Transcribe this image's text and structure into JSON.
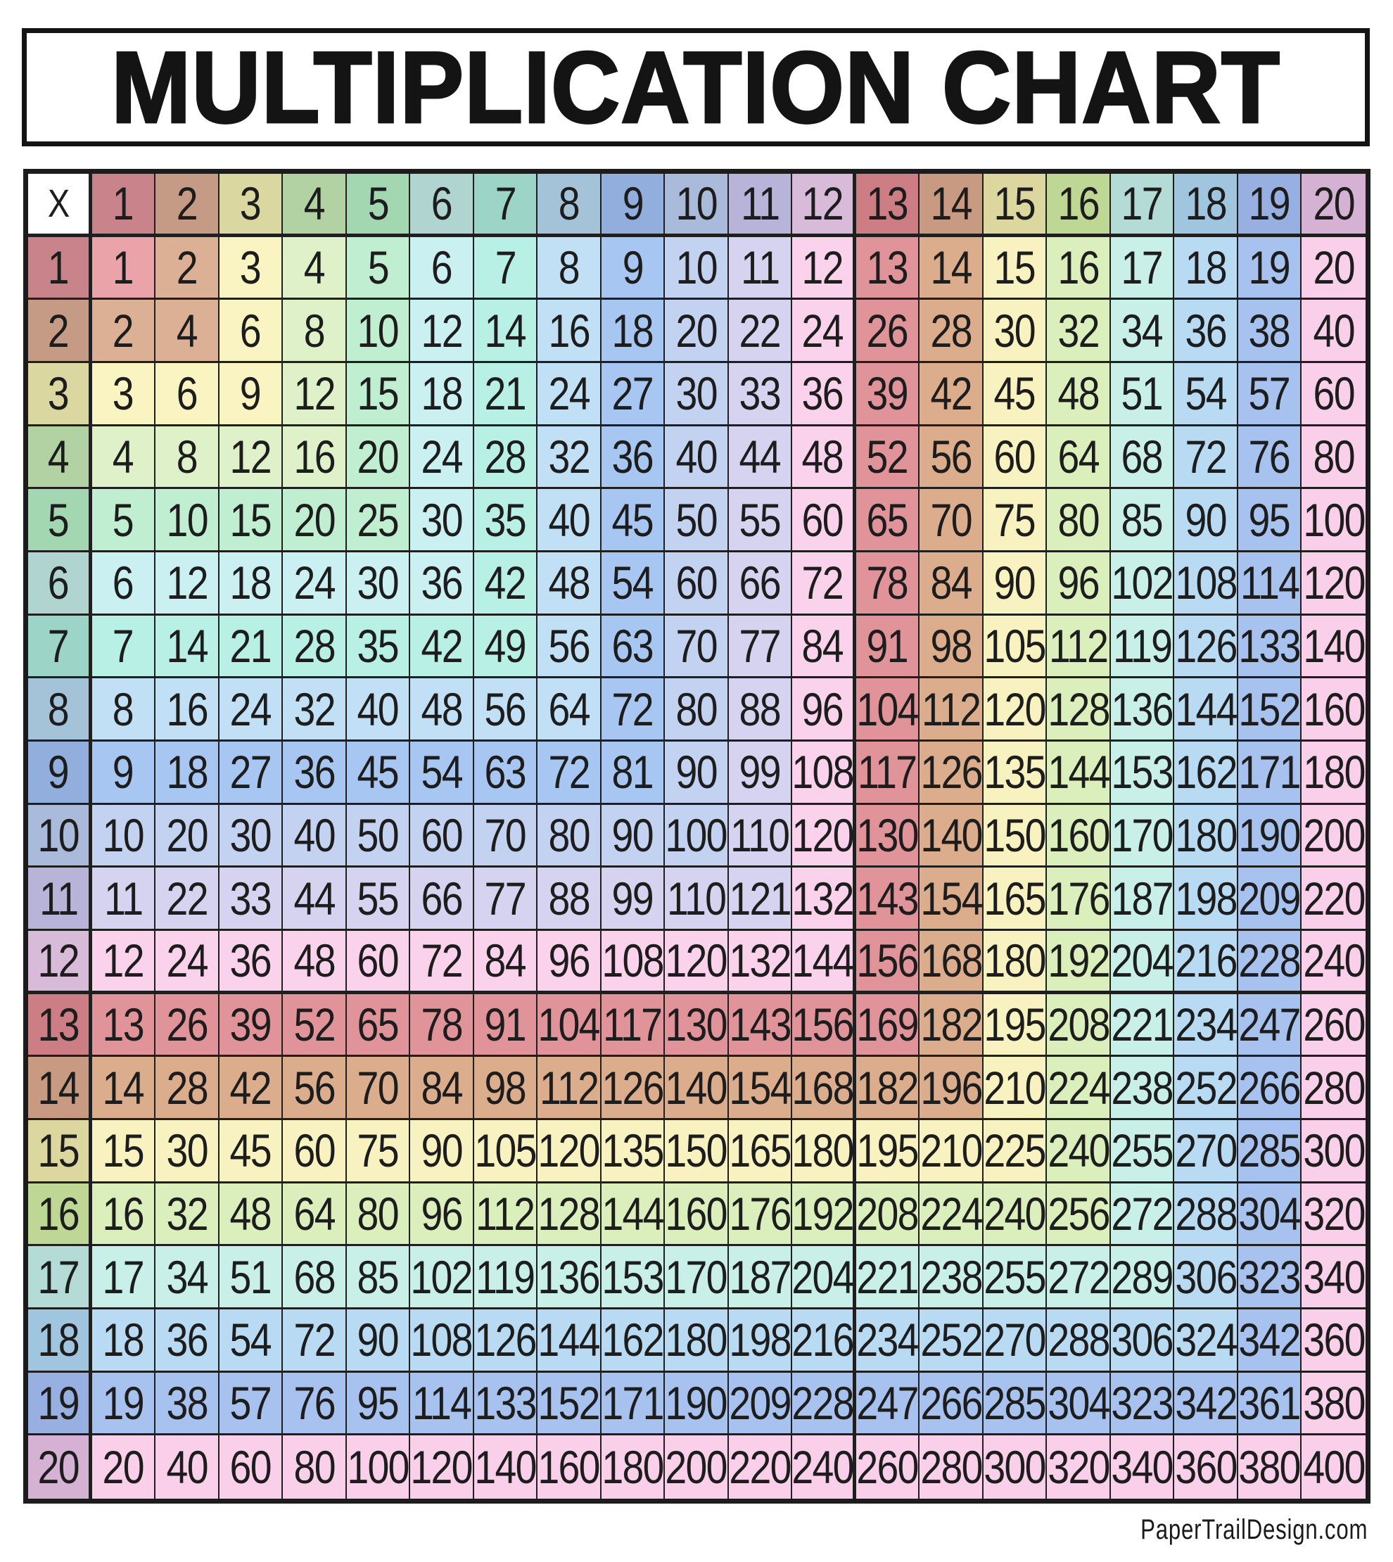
{
  "title": "MULTIPLICATION CHART",
  "footer_credit": "PaperTrailDesign.com",
  "chart_data": {
    "type": "table",
    "title": "MULTIPLICATION CHART",
    "corner_label": "X",
    "factors": [
      1,
      2,
      3,
      4,
      5,
      6,
      7,
      8,
      9,
      10,
      11,
      12,
      13,
      14,
      15,
      16,
      17,
      18,
      19,
      20
    ],
    "rows": [
      {
        "label": 1,
        "values": [
          1,
          2,
          3,
          4,
          5,
          6,
          7,
          8,
          9,
          10,
          11,
          12,
          13,
          14,
          15,
          16,
          17,
          18,
          19,
          20
        ]
      },
      {
        "label": 2,
        "values": [
          2,
          4,
          6,
          8,
          10,
          12,
          14,
          16,
          18,
          20,
          22,
          24,
          26,
          28,
          30,
          32,
          34,
          36,
          38,
          40
        ]
      },
      {
        "label": 3,
        "values": [
          3,
          6,
          9,
          12,
          15,
          18,
          21,
          24,
          27,
          30,
          33,
          36,
          39,
          42,
          45,
          48,
          51,
          54,
          57,
          60
        ]
      },
      {
        "label": 4,
        "values": [
          4,
          8,
          12,
          16,
          20,
          24,
          28,
          32,
          36,
          40,
          44,
          48,
          52,
          56,
          60,
          64,
          68,
          72,
          76,
          80
        ]
      },
      {
        "label": 5,
        "values": [
          5,
          10,
          15,
          20,
          25,
          30,
          35,
          40,
          45,
          50,
          55,
          60,
          65,
          70,
          75,
          80,
          85,
          90,
          95,
          100
        ]
      },
      {
        "label": 6,
        "values": [
          6,
          12,
          18,
          24,
          30,
          36,
          42,
          48,
          54,
          60,
          66,
          72,
          78,
          84,
          90,
          96,
          102,
          108,
          114,
          120
        ]
      },
      {
        "label": 7,
        "values": [
          7,
          14,
          21,
          28,
          35,
          42,
          49,
          56,
          63,
          70,
          77,
          84,
          91,
          98,
          105,
          112,
          119,
          126,
          133,
          140
        ]
      },
      {
        "label": 8,
        "values": [
          8,
          16,
          24,
          32,
          40,
          48,
          56,
          64,
          72,
          80,
          88,
          96,
          104,
          112,
          120,
          128,
          136,
          144,
          152,
          160
        ]
      },
      {
        "label": 9,
        "values": [
          9,
          18,
          27,
          36,
          45,
          54,
          63,
          72,
          81,
          90,
          99,
          108,
          117,
          126,
          135,
          144,
          153,
          162,
          171,
          180
        ]
      },
      {
        "label": 10,
        "values": [
          10,
          20,
          30,
          40,
          50,
          60,
          70,
          80,
          90,
          100,
          110,
          120,
          130,
          140,
          150,
          160,
          170,
          180,
          190,
          200
        ]
      },
      {
        "label": 11,
        "values": [
          11,
          22,
          33,
          44,
          55,
          66,
          77,
          88,
          99,
          110,
          121,
          132,
          143,
          154,
          165,
          176,
          187,
          198,
          209,
          220
        ]
      },
      {
        "label": 12,
        "values": [
          12,
          24,
          36,
          48,
          60,
          72,
          84,
          96,
          108,
          120,
          132,
          144,
          156,
          168,
          180,
          192,
          204,
          216,
          228,
          240
        ]
      },
      {
        "label": 13,
        "values": [
          13,
          26,
          39,
          52,
          65,
          78,
          91,
          104,
          117,
          130,
          143,
          156,
          169,
          182,
          195,
          208,
          221,
          234,
          247,
          260
        ]
      },
      {
        "label": 14,
        "values": [
          14,
          28,
          42,
          56,
          70,
          84,
          98,
          112,
          126,
          140,
          154,
          168,
          182,
          196,
          210,
          224,
          238,
          252,
          266,
          280
        ]
      },
      {
        "label": 15,
        "values": [
          15,
          30,
          45,
          60,
          75,
          90,
          105,
          120,
          135,
          150,
          165,
          180,
          195,
          210,
          225,
          240,
          255,
          270,
          285,
          300
        ]
      },
      {
        "label": 16,
        "values": [
          16,
          32,
          48,
          64,
          80,
          96,
          112,
          128,
          144,
          160,
          176,
          192,
          208,
          224,
          240,
          256,
          272,
          288,
          304,
          320
        ]
      },
      {
        "label": 17,
        "values": [
          17,
          34,
          51,
          68,
          85,
          102,
          119,
          136,
          153,
          170,
          187,
          204,
          221,
          238,
          255,
          272,
          289,
          306,
          323,
          340
        ]
      },
      {
        "label": 18,
        "values": [
          18,
          36,
          54,
          72,
          90,
          108,
          126,
          144,
          162,
          180,
          198,
          216,
          234,
          252,
          270,
          288,
          306,
          324,
          342,
          360
        ]
      },
      {
        "label": 19,
        "values": [
          19,
          38,
          57,
          76,
          95,
          114,
          133,
          152,
          171,
          190,
          209,
          228,
          247,
          266,
          285,
          304,
          323,
          342,
          361,
          380
        ]
      },
      {
        "label": 20,
        "values": [
          20,
          40,
          60,
          80,
          100,
          120,
          140,
          160,
          180,
          200,
          220,
          240,
          260,
          280,
          300,
          320,
          340,
          360,
          380,
          400
        ]
      }
    ],
    "color_rule": "cell background = band color of max(row factor, column factor); headers use darker band shades",
    "band_colors_header": [
      "#c9838b",
      "#c59b85",
      "#dbd7a0",
      "#b3d2a4",
      "#a2d7b1",
      "#b0d5d1",
      "#9dd4c8",
      "#a5c3d8",
      "#92aedd",
      "#a9badb",
      "#b8b4d9",
      "#d8bbd8",
      "#cd7e85",
      "#c79a81",
      "#dbd79f",
      "#bfd795",
      "#b4dbd5",
      "#9fc5df",
      "#97b0e1",
      "#d5b1d3"
    ],
    "band_colors_body": [
      "#eba3aa",
      "#dcb095",
      "#f9f4c2",
      "#def1c9",
      "#bfefd0",
      "#cbf0f2",
      "#b9f0e6",
      "#c1e0f5",
      "#a8c6f2",
      "#c4d2f2",
      "#d6d3f1",
      "#fbd2ec",
      "#e1939a",
      "#dbad8d",
      "#f7f2bf",
      "#dbefbc",
      "#c8f0e9",
      "#b8dbf3",
      "#a8c2ef",
      "#facfe9"
    ],
    "corner_bg": "#ffffff",
    "grid_line_color": "#1f1f1f",
    "cell_text_color": "#1d1d1d"
  }
}
